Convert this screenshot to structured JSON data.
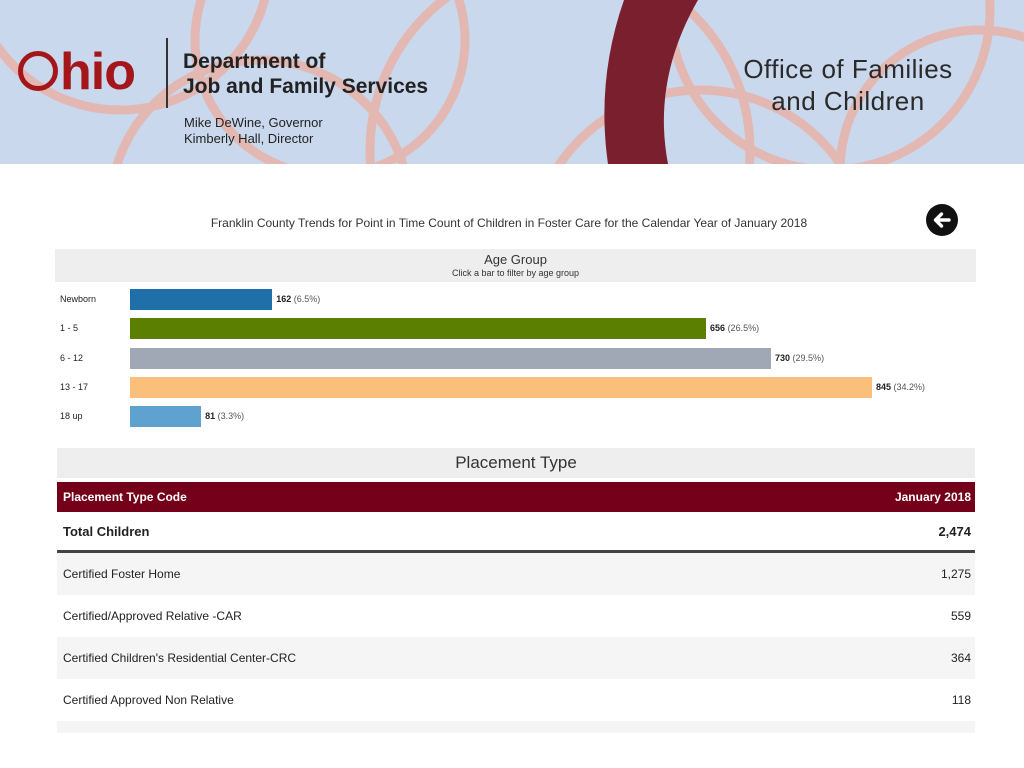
{
  "banner": {
    "logo_rest": "hio",
    "department_line1": "Department of",
    "department_line2": "Job and Family Services",
    "governor": "Mike DeWine, Governor",
    "director": "Kimberly Hall, Director",
    "office_line1": "Office of Families",
    "office_line2": "and Children",
    "colors": {
      "background": "#c9d8ec",
      "maroon": "#7a1f2e",
      "logo_red": "#a4161a"
    }
  },
  "report": {
    "title": "Franklin County Trends for Point in Time Count of Children in Foster Care for the Calendar Year of January 2018",
    "back_icon": "arrow-left-circle-icon"
  },
  "age_group": {
    "title": "Age Group",
    "subtitle": "Click a bar to filter by age group"
  },
  "chart_data": {
    "type": "bar",
    "orientation": "horizontal",
    "categories": [
      "Newborn",
      "1 - 5",
      "6 - 12",
      "13 - 17",
      "18 up"
    ],
    "values": [
      162,
      656,
      730,
      845,
      81
    ],
    "value_labels": [
      "162",
      "656",
      "730",
      "845",
      "81"
    ],
    "percent_labels": [
      "(6.5%)",
      "(26.5%)",
      "(29.5%)",
      "(34.2%)",
      "(3.3%)"
    ],
    "colors": [
      "#1f6fa8",
      "#5b7f00",
      "#a0a8b6",
      "#fbbf7c",
      "#5fa2d0"
    ],
    "xlim": [
      0,
      845
    ]
  },
  "placement": {
    "title": "Placement Type",
    "col_code": "Placement Type Code",
    "col_period": "January 2018",
    "total_label": "Total Children",
    "total_value": "2,474",
    "rows": [
      {
        "label": "Certified Foster Home",
        "value": "1,275"
      },
      {
        "label": "Certified/Approved Relative -CAR",
        "value": "559"
      },
      {
        "label": "Certified Children's Residential Center-CRC",
        "value": "364"
      },
      {
        "label": "Certified Approved Non Relative",
        "value": "118"
      }
    ]
  }
}
